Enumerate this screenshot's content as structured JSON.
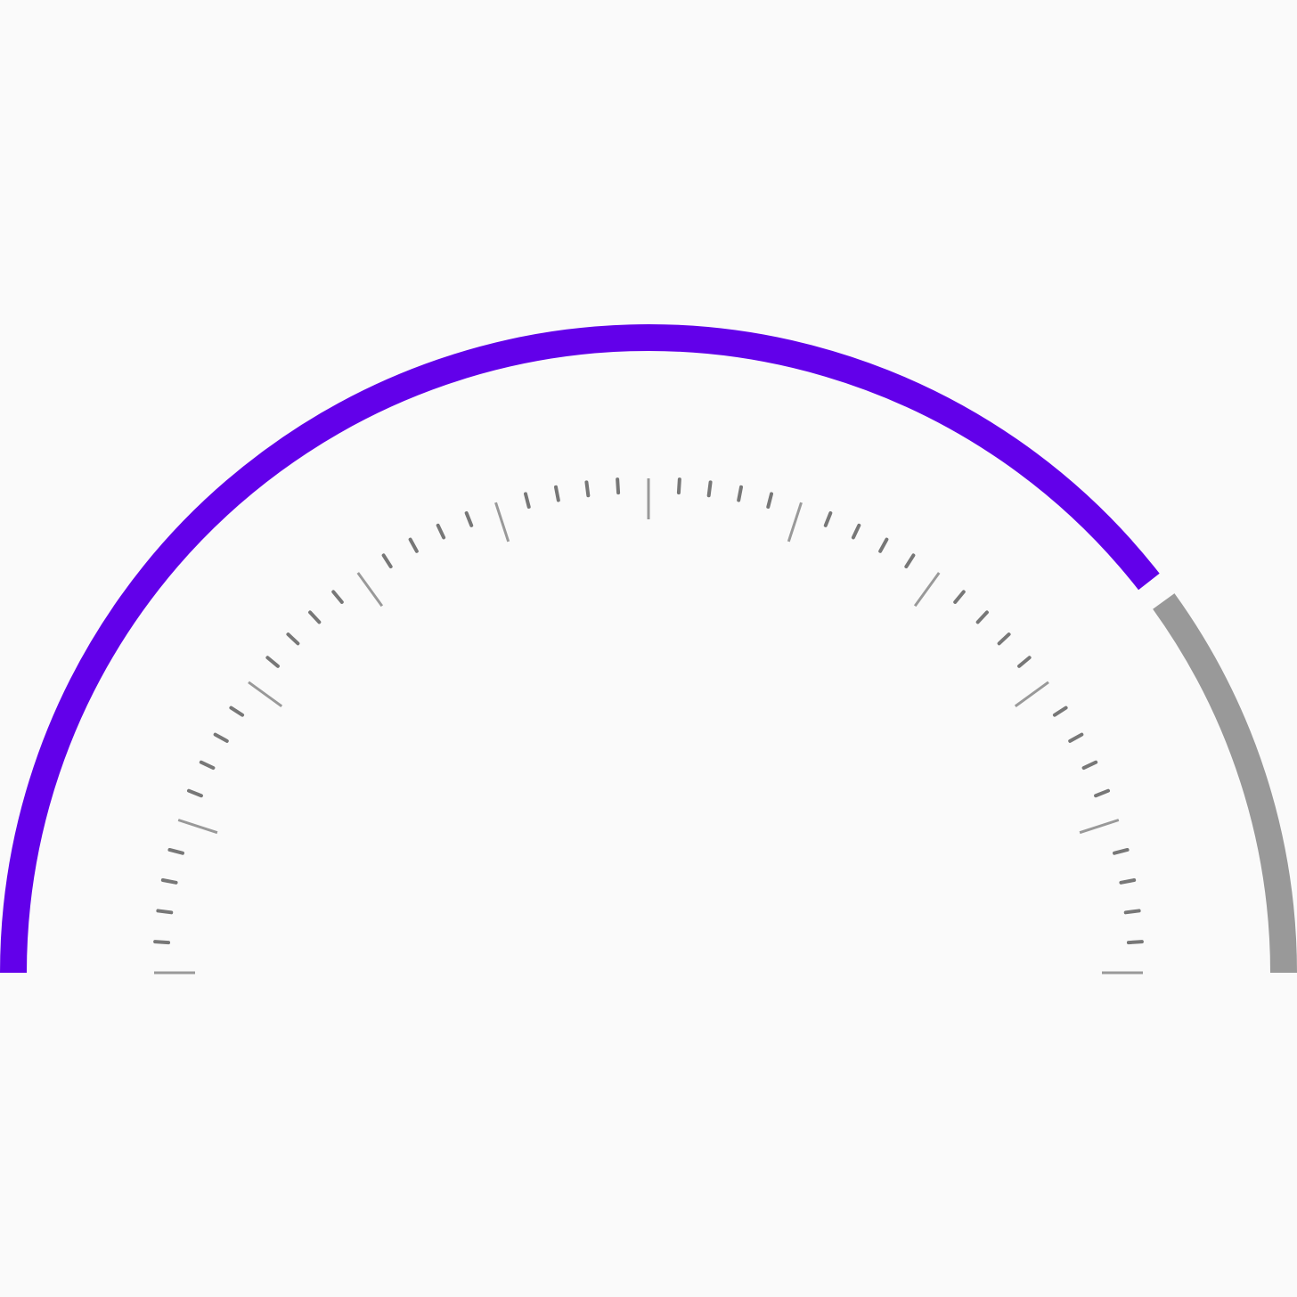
{
  "gauge": {
    "progress": 0.795,
    "colors": {
      "background": "#fafafa",
      "progress_arc": "#6200EA",
      "track_arc": "#999999",
      "major_tick": "#999999",
      "minor_tick": "#777777"
    },
    "ticks": {
      "major_count": 11,
      "minor_per_major": 4
    }
  }
}
